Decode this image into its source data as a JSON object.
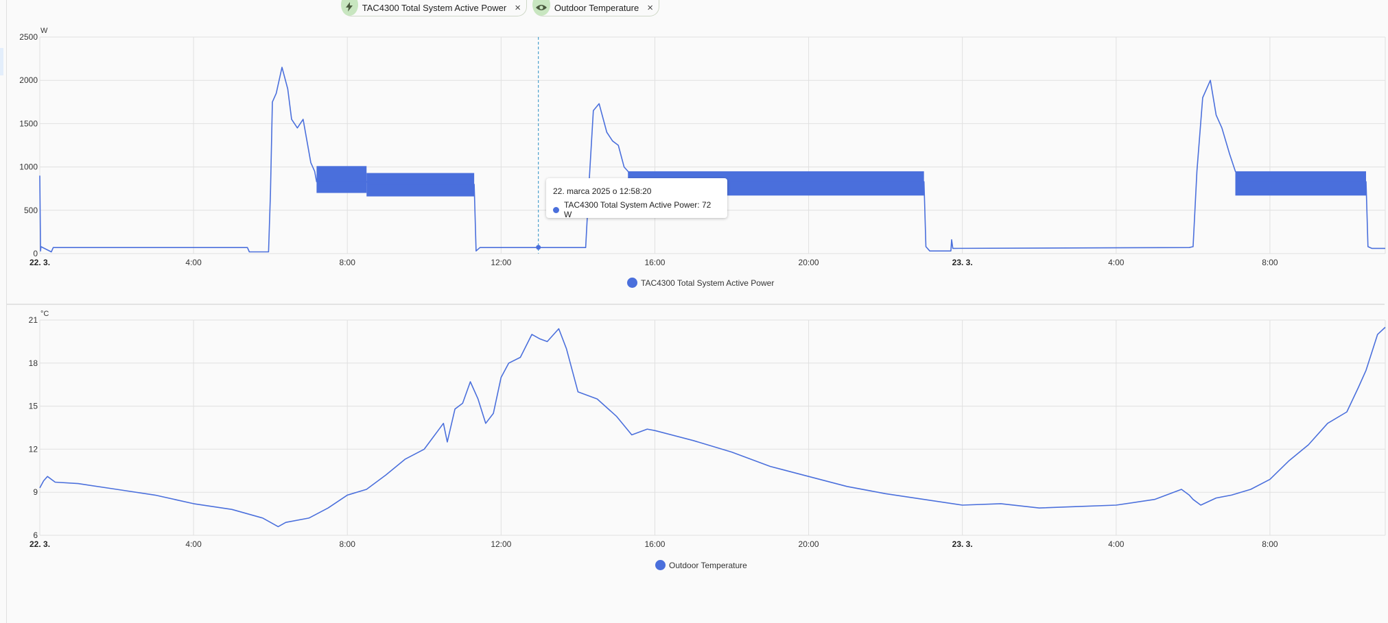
{
  "chips": [
    {
      "icon": "lightning-icon",
      "label": "TAC4300 Total System Active Power",
      "close": "×"
    },
    {
      "icon": "eye-icon",
      "label": "Outdoor Temperature",
      "close": "×"
    }
  ],
  "tooltip": {
    "time": "22. marca 2025 o 12:58:20",
    "text": "TAC4300 Total System Active Power: 72 W"
  },
  "colors": {
    "series": "#4a6fdc",
    "grid": "#e0e0e0",
    "chip_icon_bg": "#c8e6c0"
  },
  "chart_data": [
    {
      "type": "line",
      "ylabel": "W",
      "ylim": [
        0,
        2500
      ],
      "yticks": [
        0,
        500,
        1000,
        1500,
        2000,
        2500
      ],
      "xlim_hours": [
        0,
        35
      ],
      "xticks": [
        {
          "h": 0,
          "label": "22. 3.",
          "bold": true
        },
        {
          "h": 4,
          "label": "4:00",
          "bold": false
        },
        {
          "h": 8,
          "label": "8:00",
          "bold": false
        },
        {
          "h": 12,
          "label": "12:00",
          "bold": false
        },
        {
          "h": 16,
          "label": "16:00",
          "bold": false
        },
        {
          "h": 20,
          "label": "20:00",
          "bold": false
        },
        {
          "h": 24,
          "label": "23. 3.",
          "bold": true
        },
        {
          "h": 28,
          "label": "4:00",
          "bold": false
        },
        {
          "h": 32,
          "label": "8:00",
          "bold": false
        }
      ],
      "legend": "TAC4300 Total System Active Power",
      "cursor_hour": 12.97,
      "cursor_value": 72,
      "series": [
        {
          "name": "TAC4300 Total System Active Power",
          "x": [
            0,
            0.02,
            0.03,
            0.3,
            0.35,
            5.4,
            5.45,
            5.95,
            6.0,
            6.05,
            6.15,
            6.3,
            6.45,
            6.55,
            6.7,
            6.85,
            6.95,
            7.05,
            7.15,
            7.2,
            8.5,
            8.55,
            11.3,
            11.35,
            11.45,
            14.2,
            14.3,
            14.4,
            14.55,
            14.75,
            14.9,
            15.05,
            15.2,
            15.3,
            15.5,
            23.0,
            23.05,
            23.15,
            23.7,
            23.72,
            23.75,
            29.9,
            30.0,
            30.1,
            30.25,
            30.45,
            30.6,
            30.75,
            30.95,
            31.1,
            31.25,
            34.5,
            34.55,
            34.65,
            35.0
          ],
          "y": [
            900,
            30,
            80,
            20,
            70,
            70,
            20,
            20,
            700,
            1750,
            1850,
            2150,
            1900,
            1550,
            1450,
            1550,
            1300,
            1050,
            950,
            830,
            830,
            800,
            800,
            30,
            70,
            70,
            900,
            1650,
            1730,
            1400,
            1300,
            1250,
            1000,
            950,
            830,
            830,
            80,
            30,
            30,
            160,
            60,
            70,
            80,
            950,
            1800,
            2000,
            1600,
            1450,
            1150,
            950,
            830,
            830,
            80,
            60,
            60
          ],
          "band": [
            {
              "from": 7.2,
              "to": 8.5,
              "low": 700,
              "high": 1010
            },
            {
              "from": 8.5,
              "to": 11.3,
              "low": 660,
              "high": 930
            },
            {
              "from": 15.3,
              "to": 23.0,
              "low": 670,
              "high": 950
            },
            {
              "from": 31.1,
              "to": 34.5,
              "low": 670,
              "high": 950
            }
          ]
        }
      ]
    },
    {
      "type": "line",
      "ylabel": "°C",
      "ylim": [
        6,
        21
      ],
      "yticks": [
        6,
        9,
        12,
        15,
        18,
        21
      ],
      "xlim_hours": [
        0,
        35
      ],
      "xticks": [
        {
          "h": 0,
          "label": "22. 3.",
          "bold": true
        },
        {
          "h": 4,
          "label": "4:00",
          "bold": false
        },
        {
          "h": 8,
          "label": "8:00",
          "bold": false
        },
        {
          "h": 12,
          "label": "12:00",
          "bold": false
        },
        {
          "h": 16,
          "label": "16:00",
          "bold": false
        },
        {
          "h": 20,
          "label": "20:00",
          "bold": false
        },
        {
          "h": 24,
          "label": "23. 3.",
          "bold": true
        },
        {
          "h": 28,
          "label": "4:00",
          "bold": false
        },
        {
          "h": 32,
          "label": "8:00",
          "bold": false
        }
      ],
      "legend": "Outdoor Temperature",
      "series": [
        {
          "name": "Outdoor Temperature",
          "x": [
            0,
            0.1,
            0.2,
            0.4,
            1.0,
            2.0,
            3.0,
            4.0,
            5.0,
            5.8,
            6.2,
            6.4,
            7.0,
            7.5,
            8.0,
            8.5,
            9.0,
            9.5,
            10.0,
            10.5,
            10.6,
            10.8,
            11.0,
            11.2,
            11.4,
            11.6,
            11.8,
            12.0,
            12.2,
            12.5,
            12.8,
            13.0,
            13.2,
            13.5,
            13.7,
            14.0,
            14.5,
            15.0,
            15.4,
            15.8,
            16.0,
            17.0,
            18.0,
            19.0,
            20.0,
            21.0,
            22.0,
            23.0,
            24.0,
            25.0,
            26.0,
            27.0,
            28.0,
            29.0,
            29.7,
            29.9,
            30.0,
            30.2,
            30.6,
            31.0,
            31.5,
            32.0,
            32.5,
            33.0,
            33.5,
            34.0,
            34.3,
            34.5,
            34.8,
            35.0
          ],
          "y": [
            9.3,
            9.8,
            10.1,
            9.7,
            9.6,
            9.2,
            8.8,
            8.2,
            7.8,
            7.2,
            6.6,
            6.9,
            7.2,
            7.9,
            8.8,
            9.2,
            10.2,
            11.3,
            12.0,
            13.8,
            12.5,
            14.8,
            15.2,
            16.7,
            15.5,
            13.8,
            14.5,
            17.0,
            18.0,
            18.4,
            20.0,
            19.7,
            19.5,
            20.4,
            19.0,
            16.0,
            15.5,
            14.3,
            13.0,
            13.4,
            13.3,
            12.6,
            11.8,
            10.8,
            10.1,
            9.4,
            8.9,
            8.5,
            8.1,
            8.2,
            7.9,
            8.0,
            8.1,
            8.5,
            9.2,
            8.8,
            8.5,
            8.1,
            8.6,
            8.8,
            9.2,
            9.9,
            11.2,
            12.3,
            13.8,
            14.6,
            16.3,
            17.5,
            20.0,
            20.5
          ]
        }
      ]
    }
  ]
}
